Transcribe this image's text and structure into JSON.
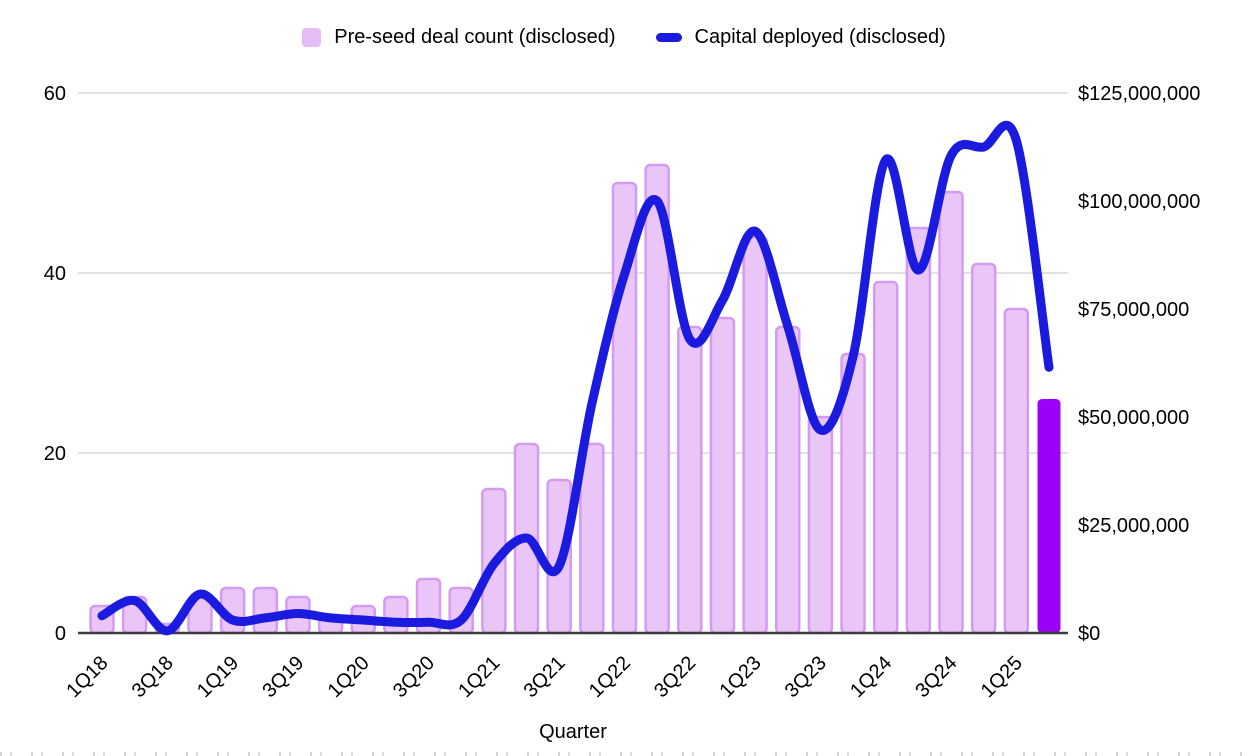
{
  "legend": {
    "items": [
      {
        "label": "Pre-seed deal count (disclosed)",
        "swatch": "bar-swatch"
      },
      {
        "label": "Capital deployed (disclosed)",
        "swatch": "line-swatch"
      }
    ]
  },
  "colors": {
    "bar_fill": "#EAC6F8",
    "bar_stroke": "#D59BF2",
    "bar_legend_swatch": "#E5BCF6",
    "bar_highlight": "#9D00F7",
    "line": "#1B1BE0",
    "grid": "#D9D9D9",
    "axis_line": "#3C3C3C",
    "text": "#000000"
  },
  "chart_data": {
    "type": "combo-bar-line",
    "title": "",
    "xlabel": "Quarter",
    "grid": true,
    "legend_position": "top",
    "categories": [
      "1Q18",
      "2Q18",
      "3Q18",
      "4Q18",
      "1Q19",
      "2Q19",
      "3Q19",
      "4Q19",
      "1Q20",
      "2Q20",
      "3Q20",
      "4Q20",
      "1Q21",
      "2Q21",
      "3Q21",
      "4Q21",
      "1Q22",
      "2Q22",
      "3Q22",
      "4Q22",
      "1Q23",
      "2Q23",
      "3Q23",
      "4Q23",
      "1Q24",
      "2Q24",
      "3Q24",
      "4Q24",
      "1Q25",
      "2Q25"
    ],
    "x_tick_labels": [
      "1Q18",
      "3Q18",
      "1Q19",
      "3Q19",
      "1Q20",
      "3Q20",
      "1Q21",
      "3Q21",
      "1Q22",
      "3Q22",
      "1Q23",
      "3Q23",
      "1Q24",
      "3Q24",
      "1Q25"
    ],
    "series": [
      {
        "name": "Pre-seed deal count (disclosed)",
        "type": "bar",
        "axis": "left",
        "values": [
          3,
          4,
          1,
          4,
          5,
          5,
          4,
          2,
          3,
          4,
          6,
          5,
          16,
          21,
          17,
          21,
          50,
          52,
          34,
          35,
          44,
          34,
          24,
          31,
          39,
          45,
          49,
          41,
          36,
          26
        ],
        "highlight_last": true
      },
      {
        "name": "Capital deployed (disclosed)",
        "type": "line",
        "axis": "right",
        "values_usd": [
          4000000,
          7500000,
          500000,
          9000000,
          3000000,
          3500000,
          4500000,
          3500000,
          3000000,
          2500000,
          2500000,
          3000000,
          16000000,
          22000000,
          15500000,
          53000000,
          83000000,
          100000000,
          68000000,
          77000000,
          93000000,
          71000000,
          47000000,
          64000000,
          109500000,
          84000000,
          110500000,
          112500000,
          114000000,
          61500000
        ]
      }
    ],
    "left_axis": {
      "range": [
        0,
        60
      ],
      "ticks": [
        0,
        20,
        40,
        60
      ],
      "tick_labels": [
        "0",
        "20",
        "40",
        "60"
      ]
    },
    "right_axis": {
      "range": [
        0,
        125000000
      ],
      "ticks": [
        0,
        25000000,
        50000000,
        75000000,
        100000000,
        125000000
      ],
      "tick_labels": [
        "$0",
        "$25,000,000",
        "$50,000,000",
        "$75,000,000",
        "$100,000,000",
        "$125,000,000"
      ]
    }
  }
}
